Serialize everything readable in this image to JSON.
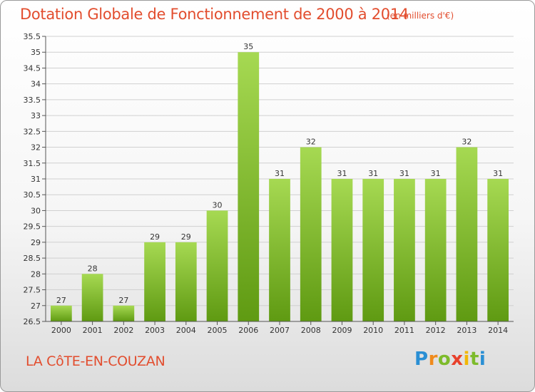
{
  "header": {
    "title": "Dotation Globale de Fonctionnement de 2000 à 2014",
    "subtitle": "(en milliers d'€)"
  },
  "footer": {
    "commune": "LA CôTE-EN-COUZAN",
    "logo": [
      "P",
      "r",
      "o",
      "x",
      "i",
      "t",
      "i"
    ]
  },
  "colors": {
    "title": "#e24d2e",
    "bar_top": "#a6d952",
    "bar_bottom": "#5f9a12",
    "grid": "#d0d0d0"
  },
  "chart_data": {
    "type": "bar",
    "title": "Dotation Globale de Fonctionnement de 2000 à 2014",
    "subtitle": "(en milliers d'€)",
    "xlabel": "",
    "ylabel": "",
    "categories": [
      "2000",
      "2001",
      "2002",
      "2003",
      "2004",
      "2005",
      "2006",
      "2007",
      "2008",
      "2009",
      "2010",
      "2011",
      "2012",
      "2013",
      "2014"
    ],
    "values": [
      27,
      28,
      27,
      29,
      29,
      30,
      35,
      31,
      32,
      31,
      31,
      31,
      31,
      32,
      31
    ],
    "value_labels": [
      "27",
      "28",
      "27",
      "29",
      "29",
      "30",
      "35",
      "31",
      "32",
      "31",
      "31",
      "31",
      "31",
      "32",
      "31"
    ],
    "ylim": [
      26.5,
      35.5
    ],
    "yticks": [
      "26.5",
      "27",
      "27.5",
      "28",
      "28.5",
      "29",
      "29.5",
      "30",
      "30.5",
      "31",
      "31.5",
      "32",
      "32.5",
      "33",
      "33.5",
      "34",
      "34.5",
      "35",
      "35.5"
    ],
    "grid": true,
    "legend": "none"
  }
}
